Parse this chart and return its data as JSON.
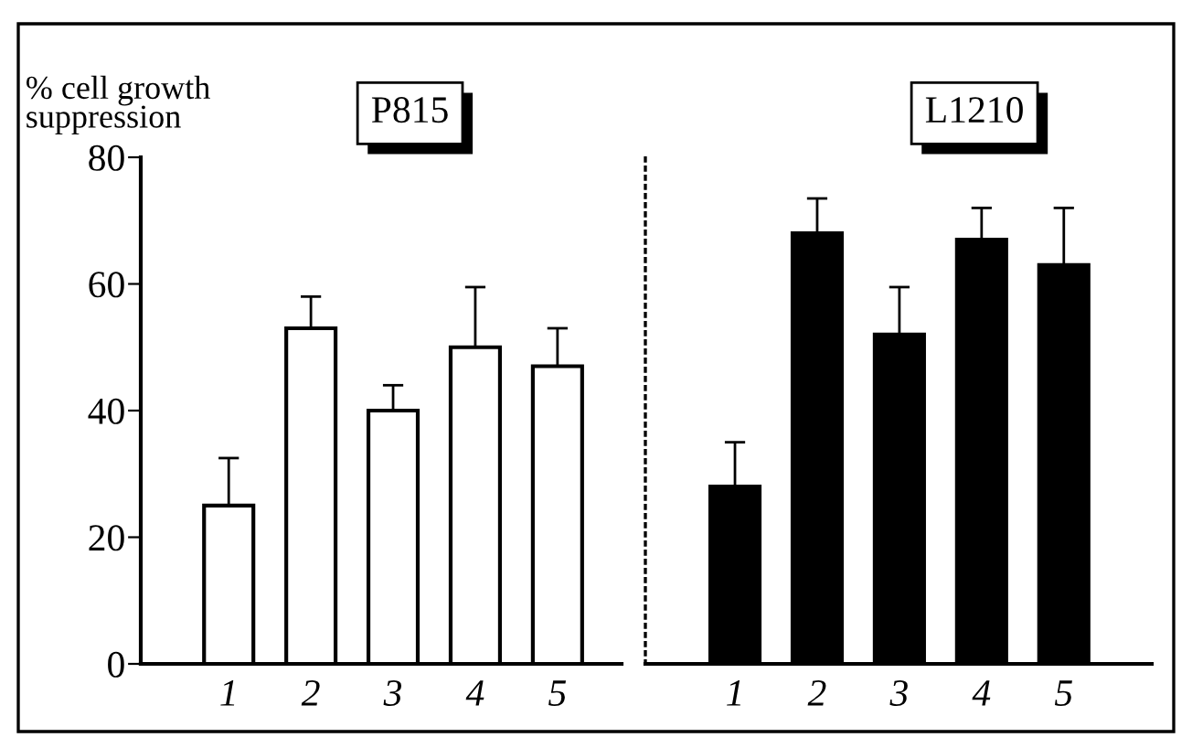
{
  "chart_data": [
    {
      "type": "bar",
      "title": "P815",
      "ylabel": "% cell growth\nsuppression",
      "categories": [
        "1",
        "2",
        "3",
        "4",
        "5"
      ],
      "values": [
        25,
        53,
        40,
        50,
        47
      ],
      "color": "#ffffff",
      "errors": [
        [
          25,
          32.5
        ],
        [
          53,
          58
        ],
        [
          40,
          44
        ],
        [
          50,
          59.5
        ],
        [
          47,
          53
        ]
      ],
      "ylim": [
        0,
        80
      ],
      "yticks": [
        0,
        20,
        40,
        60,
        80
      ]
    },
    {
      "type": "bar",
      "title": "L1210",
      "categories": [
        "1",
        "2",
        "3",
        "4",
        "5"
      ],
      "values": [
        28,
        68,
        52,
        67,
        63
      ],
      "color": "#000000",
      "errors": [
        [
          28,
          35
        ],
        [
          68,
          73.5
        ],
        [
          52,
          59.5
        ],
        [
          67,
          72
        ],
        [
          63,
          72
        ]
      ],
      "ylim": [
        0,
        80
      ],
      "tick_labels": "x"
    }
  ]
}
